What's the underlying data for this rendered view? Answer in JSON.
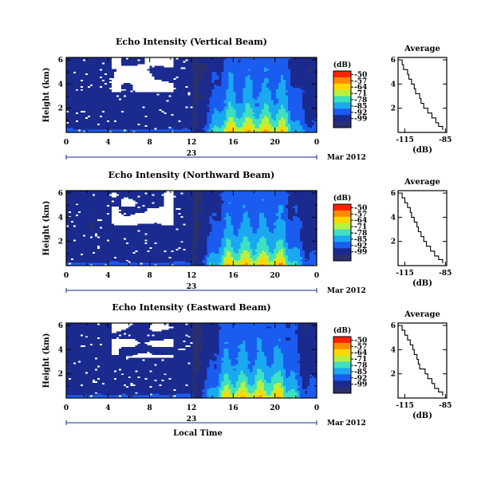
{
  "chart_data": [
    {
      "type": "heatmap",
      "title": "Echo Intensity (Vertical Beam)",
      "ylabel": "Height (km)",
      "yticks": [
        "2",
        "4",
        "6"
      ],
      "ylim": [
        0,
        6.2
      ],
      "xticks": [
        "0",
        "4",
        "8",
        "12",
        "16",
        "20",
        "0"
      ],
      "xlim": [
        0,
        24
      ],
      "date_label": "23",
      "month_label": "Mar 2012",
      "colorbar": {
        "unit": "(dB)",
        "ticks": [
          "-50",
          "-57",
          "-64",
          "-71",
          "-78",
          "-85",
          "-92",
          "-99"
        ]
      },
      "white_level": 0.45,
      "average_profile": {
        "title": "Average",
        "xlabel": "(dB)",
        "xticks": [
          "-115",
          "-85"
        ],
        "yticks": [
          "2",
          "4",
          "6"
        ],
        "xlim": [
          -120,
          -84
        ],
        "points": [
          [
            -118,
            6.0
          ],
          [
            -117,
            5.6
          ],
          [
            -116,
            5.2
          ],
          [
            -113,
            4.8
          ],
          [
            -112,
            4.4
          ],
          [
            -110,
            4.0
          ],
          [
            -108,
            3.6
          ],
          [
            -107,
            3.2
          ],
          [
            -104,
            2.8
          ],
          [
            -103,
            2.4
          ],
          [
            -101,
            2.0
          ],
          [
            -98,
            1.6
          ],
          [
            -95,
            1.2
          ],
          [
            -92,
            0.8
          ],
          [
            -90,
            0.5
          ],
          [
            -87,
            0.2
          ]
        ]
      }
    },
    {
      "type": "heatmap",
      "title": "Echo Intensity (Northward Beam)",
      "ylabel": "Height (km)",
      "yticks": [
        "2",
        "4",
        "6"
      ],
      "ylim": [
        0,
        6.2
      ],
      "xticks": [
        "0",
        "4",
        "8",
        "12",
        "16",
        "20",
        "0"
      ],
      "xlim": [
        0,
        24
      ],
      "date_label": "23",
      "month_label": "Mar 2012",
      "colorbar": {
        "unit": "(dB)",
        "ticks": [
          "-50",
          "-57",
          "-64",
          "-71",
          "-78",
          "-85",
          "-92",
          "-99"
        ]
      },
      "white_level": 0.52,
      "average_profile": {
        "title": "Average",
        "xlabel": "(dB)",
        "xticks": [
          "-115",
          "-85"
        ],
        "yticks": [
          "2",
          "4",
          "6"
        ],
        "xlim": [
          -120,
          -84
        ],
        "points": [
          [
            -118,
            6.0
          ],
          [
            -117,
            5.6
          ],
          [
            -115,
            5.2
          ],
          [
            -113,
            4.8
          ],
          [
            -111,
            4.4
          ],
          [
            -110,
            4.0
          ],
          [
            -108,
            3.6
          ],
          [
            -106,
            3.2
          ],
          [
            -105,
            2.8
          ],
          [
            -103,
            2.4
          ],
          [
            -101,
            2.0
          ],
          [
            -99,
            1.6
          ],
          [
            -96,
            1.2
          ],
          [
            -93,
            0.8
          ],
          [
            -90,
            0.5
          ],
          [
            -87,
            0.2
          ]
        ]
      }
    },
    {
      "type": "heatmap",
      "title": "Echo Intensity (Eastward Beam)",
      "ylabel": "Height (km)",
      "yticks": [
        "2",
        "4",
        "6"
      ],
      "ylim": [
        0,
        6.2
      ],
      "xticks": [
        "0",
        "4",
        "8",
        "12",
        "16",
        "20",
        "0"
      ],
      "xlim": [
        0,
        24
      ],
      "date_label": "23",
      "month_label": "Mar 2012",
      "xlabel": "Local Time",
      "colorbar": {
        "unit": "(dB)",
        "ticks": [
          "-50",
          "-57",
          "-64",
          "-71",
          "-78",
          "-85",
          "-92",
          "-99"
        ]
      },
      "white_level": 0.55,
      "average_profile": {
        "title": "Average",
        "xlabel": "(dB)",
        "xticks": [
          "-115",
          "-85"
        ],
        "yticks": [
          "2",
          "4",
          "6"
        ],
        "xlim": [
          -120,
          -84
        ],
        "points": [
          [
            -118,
            6.0
          ],
          [
            -117,
            5.6
          ],
          [
            -115,
            5.2
          ],
          [
            -113,
            4.8
          ],
          [
            -111,
            4.4
          ],
          [
            -109,
            4.0
          ],
          [
            -108,
            3.6
          ],
          [
            -106,
            3.2
          ],
          [
            -105,
            2.8
          ],
          [
            -104,
            2.4
          ],
          [
            -100,
            2.0
          ],
          [
            -98,
            1.6
          ],
          [
            -95,
            1.2
          ],
          [
            -93,
            0.8
          ],
          [
            -90,
            0.5
          ],
          [
            -87,
            0.2
          ]
        ]
      }
    }
  ],
  "colors": {
    "colorbar": [
      "#ff2200",
      "#ff8c00",
      "#ffd800",
      "#b8f040",
      "#3de0c0",
      "#1aa8f0",
      "#1b5cf0",
      "#1b2a8f",
      "#2a2f6e"
    ],
    "background": "#ffffff"
  }
}
